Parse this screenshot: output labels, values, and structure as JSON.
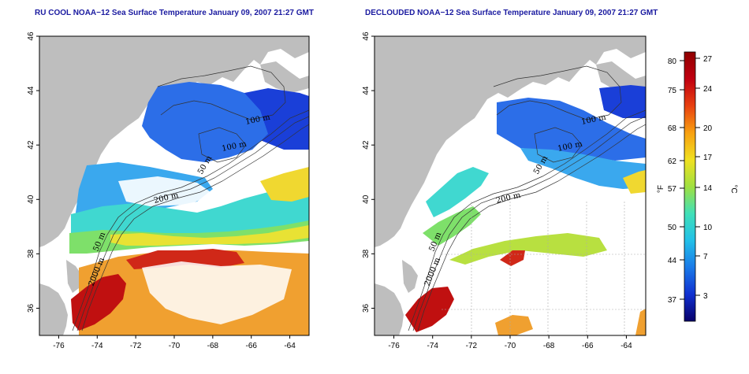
{
  "panels": [
    {
      "title": "RU COOL NOAA−12 Sea Surface Temperature January 09, 2007 21:27 GMT",
      "xticks": [
        "-76",
        "-74",
        "-72",
        "-70",
        "-68",
        "-66",
        "-64"
      ],
      "yticks": [
        "36",
        "38",
        "40",
        "42",
        "44",
        "46"
      ],
      "contour_labels": [
        "100 m",
        "100 m",
        "50 m",
        "200 m",
        "50 m",
        "2000 m"
      ]
    },
    {
      "title": "DECLOUDED NOAA−12 Sea Surface Temperature January 09, 2007 21:27 GMT",
      "xticks": [
        "-76",
        "-74",
        "-72",
        "-70",
        "-68",
        "-66",
        "-64"
      ],
      "yticks": [
        "36",
        "38",
        "40",
        "42",
        "44",
        "46"
      ],
      "contour_labels": [
        "100 m",
        "100 m",
        "50 m",
        "200 m",
        "50 m",
        "2000 m"
      ]
    }
  ],
  "colorbar": {
    "f_label": "°F",
    "c_label": "°C",
    "f_ticks": [
      "80",
      "75",
      "68",
      "62",
      "57",
      "50",
      "44",
      "37"
    ],
    "c_ticks": [
      "27",
      "24",
      "20",
      "17",
      "14",
      "10",
      "7",
      "3"
    ],
    "colors": [
      "#08006a",
      "#1030d0",
      "#1a7ae8",
      "#22c0e8",
      "#40e0b8",
      "#a0e040",
      "#f0e020",
      "#f8a010",
      "#e84010",
      "#c00010",
      "#900000"
    ]
  },
  "colors": {
    "land": "#bebebe",
    "title": "#1a1aa0"
  }
}
